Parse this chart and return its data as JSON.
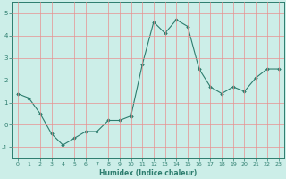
{
  "xlabel": "Humidex (Indice chaleur)",
  "x_values": [
    0,
    1,
    2,
    3,
    4,
    5,
    6,
    7,
    8,
    9,
    10,
    11,
    12,
    13,
    14,
    15,
    16,
    17,
    18,
    19,
    20,
    21,
    22,
    23
  ],
  "y_values": [
    1.4,
    1.2,
    0.5,
    -0.4,
    -0.9,
    -0.6,
    -0.3,
    -0.3,
    0.2,
    0.2,
    0.4,
    2.7,
    4.6,
    4.1,
    4.7,
    4.4,
    2.5,
    1.7,
    1.4,
    1.7,
    1.5,
    2.1,
    2.5,
    2.5
  ],
  "ylim": [
    -1.5,
    5.5
  ],
  "xlim": [
    -0.5,
    23.5
  ],
  "yticks": [
    -1,
    0,
    1,
    2,
    3,
    4,
    5
  ],
  "xticks": [
    0,
    1,
    2,
    3,
    4,
    5,
    6,
    7,
    8,
    9,
    10,
    11,
    12,
    13,
    14,
    15,
    16,
    17,
    18,
    19,
    20,
    21,
    22,
    23
  ],
  "line_color": "#2d7d6e",
  "marker_color": "#2d7d6e",
  "bg_color": "#cceee8",
  "grid_color": "#e89090",
  "axis_color": "#2d7d6e",
  "xlabel_color": "#2d7d6e"
}
